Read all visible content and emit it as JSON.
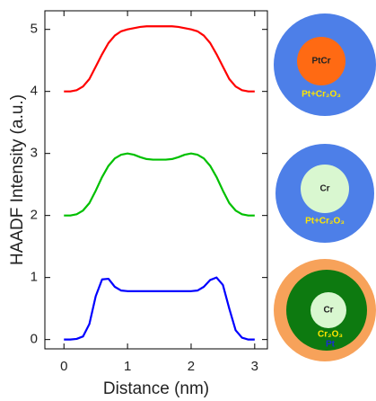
{
  "chart_data": {
    "type": "line",
    "xlabel": "Distance (nm)",
    "ylabel": "HAADF Intensity (a.u.)",
    "x": [
      0,
      0.1,
      0.2,
      0.3,
      0.4,
      0.5,
      0.6,
      0.7,
      0.8,
      0.9,
      1.0,
      1.1,
      1.2,
      1.3,
      1.4,
      1.5,
      1.6,
      1.7,
      1.8,
      1.9,
      2.0,
      2.1,
      2.2,
      2.3,
      2.4,
      2.5,
      2.6,
      2.7,
      2.8,
      2.9,
      3.0
    ],
    "series": [
      {
        "color": "#ff0000",
        "values": [
          4.0,
          4.0,
          4.02,
          4.08,
          4.2,
          4.4,
          4.6,
          4.78,
          4.9,
          4.97,
          5.0,
          5.02,
          5.04,
          5.05,
          5.05,
          5.05,
          5.05,
          5.05,
          5.04,
          5.02,
          5.0,
          4.97,
          4.9,
          4.78,
          4.6,
          4.4,
          4.2,
          4.08,
          4.02,
          4.0,
          4.0
        ]
      },
      {
        "color": "#00c000",
        "values": [
          2.0,
          2.0,
          2.02,
          2.08,
          2.2,
          2.4,
          2.62,
          2.8,
          2.92,
          2.98,
          3.0,
          2.98,
          2.94,
          2.91,
          2.9,
          2.9,
          2.9,
          2.91,
          2.94,
          2.98,
          3.0,
          2.98,
          2.92,
          2.8,
          2.62,
          2.4,
          2.2,
          2.08,
          2.02,
          2.0,
          2.0
        ]
      },
      {
        "color": "#0000ff",
        "values": [
          0.0,
          0.0,
          0.01,
          0.05,
          0.25,
          0.7,
          0.97,
          0.98,
          0.85,
          0.79,
          0.78,
          0.78,
          0.78,
          0.78,
          0.78,
          0.78,
          0.78,
          0.78,
          0.78,
          0.78,
          0.78,
          0.79,
          0.85,
          0.96,
          1.0,
          0.88,
          0.5,
          0.15,
          0.03,
          0.0,
          0.0
        ]
      }
    ],
    "xlim": [
      -0.3,
      3.2
    ],
    "ylim": [
      -0.15,
      5.3
    ],
    "xticks": [
      0,
      1,
      2,
      3
    ],
    "yticks": [
      0,
      1,
      2,
      3,
      4,
      5
    ]
  },
  "diagrams": [
    {
      "core": "PtCr",
      "shell": "Pt+Cr₂O₃"
    },
    {
      "core": "Cr",
      "shell": "Pt+Cr₂O₃"
    },
    {
      "core": "Cr",
      "middle": "Cr₂O₃",
      "outer": "Pt"
    }
  ]
}
